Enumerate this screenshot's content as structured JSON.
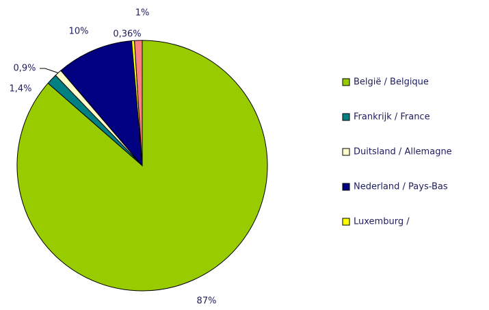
{
  "chart_data": {
    "type": "pie",
    "categories": [
      "België / Belgique",
      "Frankrijk / France",
      "Duitsland / Allemagne",
      "Nederland / Pays-Bas",
      "Luxemburg /",
      null
    ],
    "values": [
      87,
      1.4,
      0.9,
      10,
      0.36,
      1
    ],
    "value_labels": [
      "87%",
      "1,4%",
      "0,9%",
      "10%",
      "0,36%",
      "1%"
    ],
    "colors": [
      "#99cc00",
      "#008080",
      "#ffffcc",
      "#000080",
      "#ffff00",
      "#ff8080"
    ],
    "legend": "right"
  }
}
